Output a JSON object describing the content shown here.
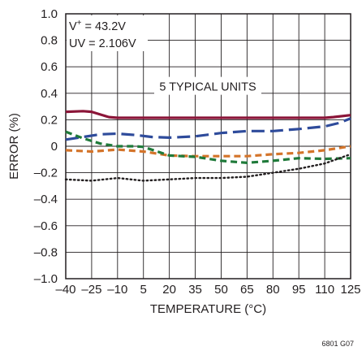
{
  "chart_data": {
    "type": "line",
    "xlabel": "TEMPERATURE (°C)",
    "ylabel": "ERROR (%)",
    "xlim": [
      -40,
      125
    ],
    "ylim": [
      -1.0,
      1.0
    ],
    "x_ticks": [
      "–40",
      "–25",
      "–10",
      "5",
      "20",
      "35",
      "50",
      "65",
      "80",
      "95",
      "110",
      "125"
    ],
    "y_ticks": [
      "1.0",
      "0.8",
      "0.6",
      "0.4",
      "0.2",
      "0",
      "–0.2",
      "–0.4",
      "–0.6",
      "–0.8",
      "–1.0"
    ],
    "grid": true,
    "annotations": {
      "supply_prefix": "V",
      "supply_sup": "+",
      "supply_value": " = 43.2V",
      "uv": "UV = 2.106V",
      "units": "5 TYPICAL UNITS"
    },
    "figure_id": "6801 G07",
    "series": [
      {
        "color": "#8b1538",
        "style": "solid",
        "points": [
          [
            -40,
            0.26
          ],
          [
            -30,
            0.265
          ],
          [
            -25,
            0.26
          ],
          [
            -20,
            0.24
          ],
          [
            -15,
            0.22
          ],
          [
            -10,
            0.215
          ],
          [
            0,
            0.215
          ],
          [
            20,
            0.215
          ],
          [
            50,
            0.215
          ],
          [
            80,
            0.215
          ],
          [
            100,
            0.215
          ],
          [
            110,
            0.215
          ],
          [
            115,
            0.22
          ],
          [
            125,
            0.235
          ]
        ]
      },
      {
        "color": "#2e4b9b",
        "style": "long-dash",
        "points": [
          [
            -40,
            0.05
          ],
          [
            -30,
            0.07
          ],
          [
            -20,
            0.09
          ],
          [
            -10,
            0.095
          ],
          [
            0,
            0.085
          ],
          [
            10,
            0.07
          ],
          [
            20,
            0.065
          ],
          [
            35,
            0.075
          ],
          [
            50,
            0.1
          ],
          [
            65,
            0.115
          ],
          [
            80,
            0.115
          ],
          [
            95,
            0.13
          ],
          [
            110,
            0.15
          ],
          [
            118,
            0.175
          ],
          [
            125,
            0.21
          ]
        ]
      },
      {
        "color": "#d4742a",
        "style": "dash",
        "points": [
          [
            -40,
            -0.03
          ],
          [
            -25,
            -0.04
          ],
          [
            -10,
            -0.025
          ],
          [
            5,
            -0.04
          ],
          [
            20,
            -0.07
          ],
          [
            35,
            -0.075
          ],
          [
            50,
            -0.075
          ],
          [
            65,
            -0.075
          ],
          [
            80,
            -0.06
          ],
          [
            95,
            -0.05
          ],
          [
            110,
            -0.03
          ],
          [
            125,
            0.0
          ]
        ]
      },
      {
        "color": "#1f7a3a",
        "style": "dash",
        "points": [
          [
            -40,
            0.11
          ],
          [
            -30,
            0.06
          ],
          [
            -20,
            0.02
          ],
          [
            -10,
            0.0
          ],
          [
            0,
            0.0
          ],
          [
            5,
            -0.005
          ],
          [
            20,
            -0.07
          ],
          [
            35,
            -0.08
          ],
          [
            50,
            -0.11
          ],
          [
            65,
            -0.125
          ],
          [
            80,
            -0.11
          ],
          [
            95,
            -0.09
          ],
          [
            110,
            -0.095
          ],
          [
            125,
            -0.09
          ]
        ]
      },
      {
        "color": "#231f20",
        "style": "dot",
        "points": [
          [
            -40,
            -0.25
          ],
          [
            -25,
            -0.26
          ],
          [
            -10,
            -0.24
          ],
          [
            5,
            -0.26
          ],
          [
            20,
            -0.25
          ],
          [
            35,
            -0.24
          ],
          [
            50,
            -0.24
          ],
          [
            65,
            -0.23
          ],
          [
            80,
            -0.2
          ],
          [
            95,
            -0.17
          ],
          [
            110,
            -0.13
          ],
          [
            125,
            -0.06
          ]
        ]
      }
    ]
  }
}
